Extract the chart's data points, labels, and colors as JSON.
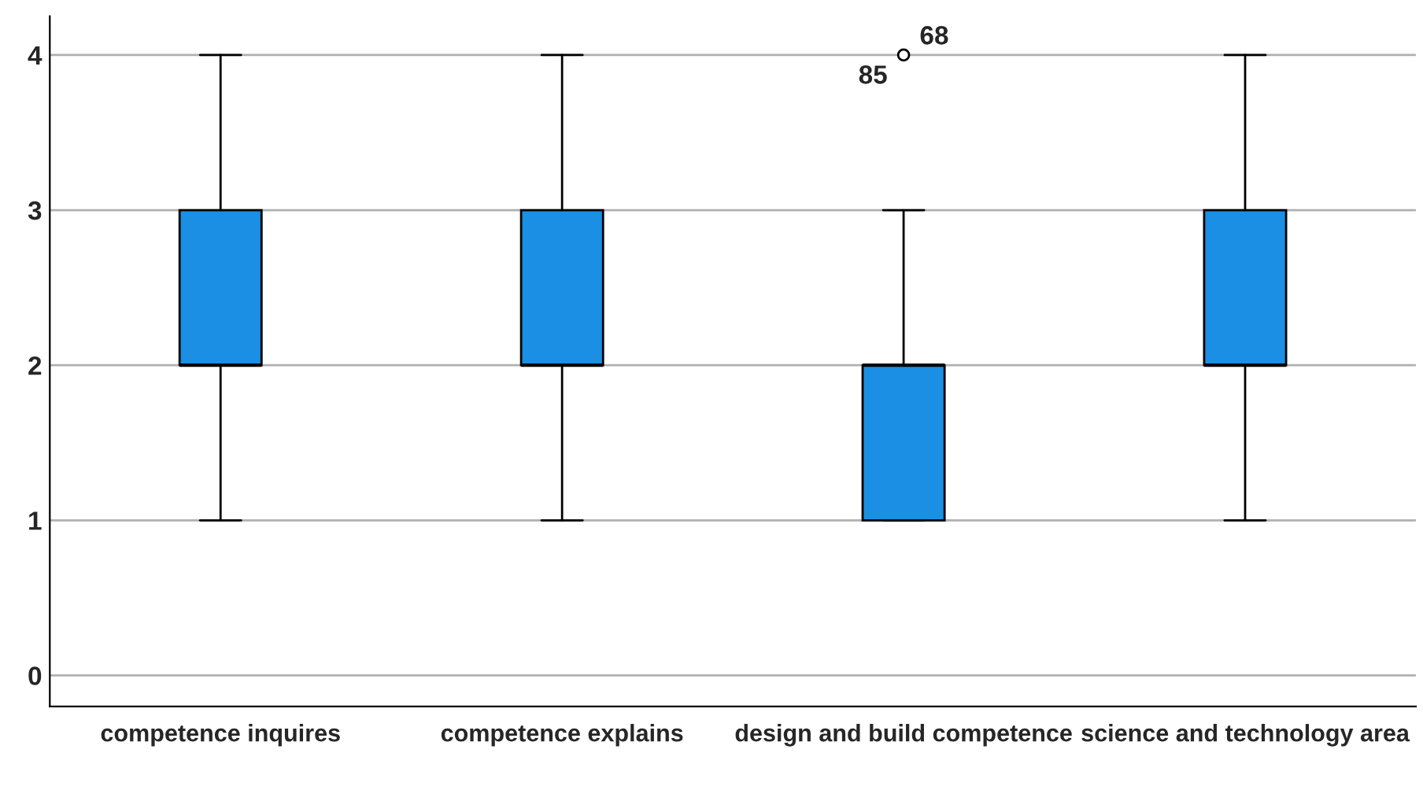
{
  "chart_data": {
    "type": "box",
    "categories": [
      "competence inquires",
      "competence explains",
      "design and build competence",
      "science and technology area"
    ],
    "boxes": [
      {
        "low": 1,
        "q1": 2,
        "median": 2,
        "q3": 3,
        "high": 4
      },
      {
        "low": 1,
        "q1": 2,
        "median": 2,
        "q3": 3,
        "high": 4
      },
      {
        "low": 1,
        "q1": 1,
        "median": 2,
        "q3": 2,
        "high": 3,
        "outliers": [
          4
        ]
      },
      {
        "low": 1,
        "q1": 2,
        "median": 2,
        "q3": 3,
        "high": 4
      }
    ],
    "color": "#1a8fe3",
    "ylim": [
      -0.2,
      4.25
    ],
    "yticks": [
      0,
      1,
      2,
      3,
      4
    ],
    "grid": "y",
    "annotations": [
      "85",
      "68"
    ]
  }
}
